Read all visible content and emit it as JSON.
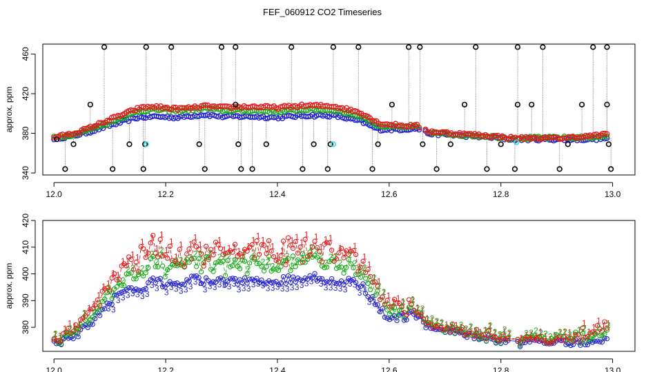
{
  "figure_title": "FEF_060912  CO2 Timeseries",
  "chart_data": [
    {
      "type": "scatter",
      "title": "FEF_060912  CO2 Timeseries",
      "xlabel": "",
      "ylabel": "approx. ppm",
      "xlim": [
        11.98,
        13.04
      ],
      "ylim": [
        338,
        470
      ],
      "x_ticks": [
        12.0,
        12.2,
        12.4,
        12.6,
        12.8,
        13.0
      ],
      "x_tick_labels": [
        "12.0",
        "12.2",
        "12.4",
        "12.6",
        "12.8",
        "13.0"
      ],
      "y_ticks": [
        340,
        380,
        420,
        460
      ],
      "y_tick_labels": [
        "340",
        "380",
        "420",
        "460"
      ],
      "grid": false,
      "colors": {
        "ch1": "#e41a1c",
        "ch2": "#1aaa1a",
        "ch3": "#1f1fd0",
        "outlier": "#000000",
        "special": "#33dddd",
        "vline": "#888888"
      },
      "baseline": [
        [
          12.0,
          375
        ],
        [
          12.03,
          377
        ],
        [
          12.06,
          381
        ],
        [
          12.1,
          388
        ],
        [
          12.15,
          396
        ],
        [
          12.18,
          397
        ],
        [
          12.22,
          396
        ],
        [
          12.27,
          399
        ],
        [
          12.3,
          397
        ],
        [
          12.35,
          397
        ],
        [
          12.4,
          396
        ],
        [
          12.45,
          398
        ],
        [
          12.5,
          398
        ],
        [
          12.55,
          392
        ],
        [
          12.58,
          384
        ],
        [
          12.62,
          384
        ],
        [
          12.65,
          385
        ],
        [
          12.67,
          380
        ],
        [
          12.72,
          378
        ],
        [
          12.78,
          376
        ],
        [
          12.82,
          374
        ],
        [
          12.88,
          374
        ],
        [
          12.95,
          374
        ],
        [
          12.99,
          375
        ]
      ],
      "outliers": [
        [
          12.005,
          374
        ],
        [
          12.02,
          344
        ],
        [
          12.035,
          369
        ],
        [
          12.065,
          409
        ],
        [
          12.09,
          467
        ],
        [
          12.105,
          344
        ],
        [
          12.135,
          369
        ],
        [
          12.16,
          344
        ],
        [
          12.163,
          369
        ],
        [
          12.165,
          467
        ],
        [
          12.21,
          467
        ],
        [
          12.26,
          369
        ],
        [
          12.27,
          344
        ],
        [
          12.3,
          467
        ],
        [
          12.325,
          467
        ],
        [
          12.325,
          409
        ],
        [
          12.33,
          369
        ],
        [
          12.335,
          344
        ],
        [
          12.355,
          344
        ],
        [
          12.38,
          369
        ],
        [
          12.425,
          467
        ],
        [
          12.445,
          344
        ],
        [
          12.465,
          369
        ],
        [
          12.49,
          344
        ],
        [
          12.495,
          369
        ],
        [
          12.5,
          467
        ],
        [
          12.545,
          467
        ],
        [
          12.57,
          344
        ],
        [
          12.58,
          369
        ],
        [
          12.605,
          409
        ],
        [
          12.635,
          467
        ],
        [
          12.655,
          467
        ],
        [
          12.66,
          369
        ],
        [
          12.685,
          344
        ],
        [
          12.71,
          369
        ],
        [
          12.735,
          409
        ],
        [
          12.755,
          467
        ],
        [
          12.775,
          344
        ],
        [
          12.8,
          369
        ],
        [
          12.825,
          344
        ],
        [
          12.83,
          409
        ],
        [
          12.83,
          467
        ],
        [
          12.855,
          409
        ],
        [
          12.875,
          467
        ],
        [
          12.905,
          344
        ],
        [
          12.92,
          369
        ],
        [
          12.945,
          409
        ],
        [
          12.965,
          467
        ],
        [
          12.99,
          467
        ],
        [
          12.99,
          409
        ],
        [
          12.993,
          369
        ],
        [
          12.997,
          344
        ]
      ],
      "special_points": [
        [
          12.165,
          369
        ],
        [
          12.5,
          369
        ],
        [
          12.828,
          371
        ]
      ],
      "series": [
        {
          "name": "1",
          "offset_profile": [
            [
              12.0,
              1
            ],
            [
              12.05,
              3
            ],
            [
              12.1,
              6
            ],
            [
              12.17,
              10
            ],
            [
              12.25,
              8
            ],
            [
              12.35,
              10
            ],
            [
              12.45,
              10
            ],
            [
              12.55,
              9
            ],
            [
              12.6,
              5
            ],
            [
              12.66,
              2
            ],
            [
              12.9,
              1
            ],
            [
              12.99,
              4
            ]
          ]
        },
        {
          "name": "2",
          "offset_profile": [
            [
              12.0,
              0.5
            ],
            [
              12.1,
              3
            ],
            [
              12.17,
              7
            ],
            [
              12.3,
              6
            ],
            [
              12.45,
              6
            ],
            [
              12.55,
              5
            ],
            [
              12.62,
              2
            ],
            [
              12.7,
              0.5
            ],
            [
              12.99,
              2
            ]
          ]
        },
        {
          "name": "3",
          "offset_profile": [
            [
              12.0,
              0
            ],
            [
              12.99,
              0
            ]
          ]
        }
      ]
    },
    {
      "type": "scatter",
      "title": "",
      "xlabel": "",
      "ylabel": "approx. ppm",
      "xlim": [
        11.98,
        13.04
      ],
      "ylim": [
        371,
        420
      ],
      "x_ticks": [
        12.0,
        12.2,
        12.4,
        12.6,
        12.8,
        13.0
      ],
      "x_tick_labels": [
        "12.0",
        "12.2",
        "12.4",
        "12.6",
        "12.8",
        "13.0"
      ],
      "y_ticks": [
        380,
        390,
        400,
        410,
        420
      ],
      "y_tick_labels": [
        "380",
        "390",
        "400",
        "410",
        "420"
      ],
      "grid": false,
      "point_labels": [
        "1",
        "2",
        "3"
      ],
      "baseline": [
        [
          12.0,
          374
        ],
        [
          12.03,
          376
        ],
        [
          12.06,
          380
        ],
        [
          12.09,
          387
        ],
        [
          12.12,
          393
        ],
        [
          12.15,
          394
        ],
        [
          12.18,
          398
        ],
        [
          12.2,
          396
        ],
        [
          12.25,
          398
        ],
        [
          12.3,
          397
        ],
        [
          12.35,
          398
        ],
        [
          12.4,
          397
        ],
        [
          12.45,
          399
        ],
        [
          12.5,
          398
        ],
        [
          12.55,
          396
        ],
        [
          12.58,
          388
        ],
        [
          12.6,
          383
        ],
        [
          12.63,
          384
        ],
        [
          12.65,
          385
        ],
        [
          12.67,
          380
        ],
        [
          12.72,
          378
        ],
        [
          12.78,
          376
        ],
        [
          12.82,
          374
        ],
        [
          12.88,
          374
        ],
        [
          12.95,
          374
        ],
        [
          12.99,
          375
        ]
      ],
      "series": [
        {
          "name": "1",
          "offset_profile": [
            [
              12.0,
              1
            ],
            [
              12.05,
              4
            ],
            [
              12.1,
              7
            ],
            [
              12.18,
              14
            ],
            [
              12.25,
              10
            ],
            [
              12.35,
              11
            ],
            [
              12.45,
              12
            ],
            [
              12.55,
              9
            ],
            [
              12.6,
              6
            ],
            [
              12.66,
              1
            ],
            [
              12.9,
              1
            ],
            [
              12.99,
              5
            ]
          ]
        },
        {
          "name": "2",
          "offset_profile": [
            [
              12.0,
              0.5
            ],
            [
              12.1,
              3
            ],
            [
              12.17,
              6
            ],
            [
              12.3,
              6
            ],
            [
              12.45,
              7
            ],
            [
              12.55,
              5
            ],
            [
              12.62,
              2
            ],
            [
              12.7,
              0.5
            ],
            [
              12.99,
              2
            ]
          ]
        },
        {
          "name": "3",
          "offset_profile": [
            [
              12.0,
              0
            ],
            [
              12.99,
              0
            ]
          ]
        }
      ]
    }
  ]
}
